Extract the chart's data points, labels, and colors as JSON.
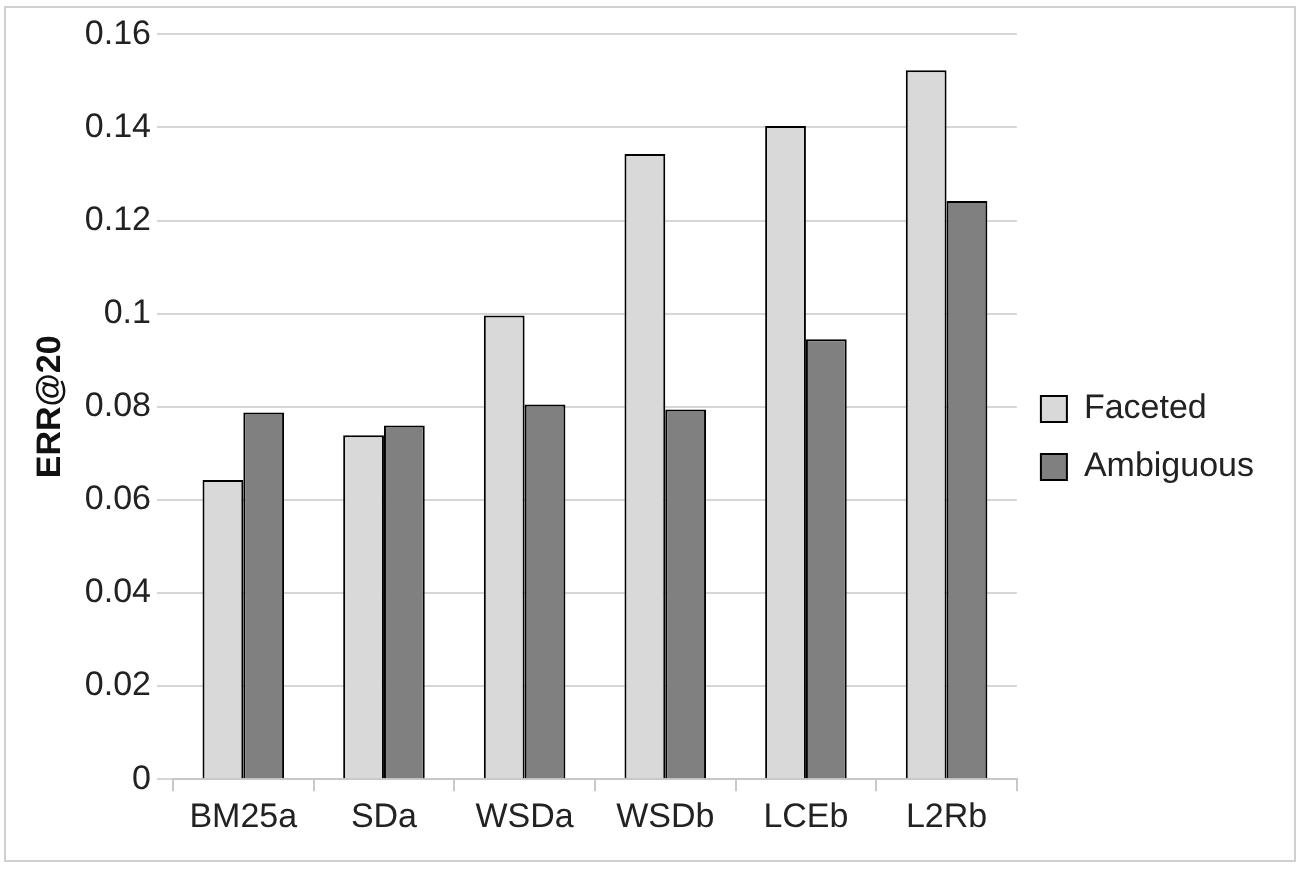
{
  "chart_data": {
    "type": "bar",
    "ylabel": "ERR@20",
    "categories": [
      "BM25a",
      "SDa",
      "WSDa",
      "WSDb",
      "LCEb",
      "L2Rb"
    ],
    "series": [
      {
        "name": "Faceted",
        "color": "#d9d9d9",
        "values": [
          0.0643,
          0.0739,
          0.0996,
          0.1343,
          0.1403,
          0.1523
        ]
      },
      {
        "name": "Ambiguous",
        "color": "#808080",
        "values": [
          0.0788,
          0.076,
          0.0805,
          0.0794,
          0.0945,
          0.1242
        ]
      }
    ],
    "ylim": [
      0,
      0.16
    ],
    "yticks": [
      0,
      0.02,
      0.04,
      0.06,
      0.08,
      0.1,
      0.12,
      0.14,
      0.16
    ],
    "grid": "y",
    "legend": "right"
  }
}
